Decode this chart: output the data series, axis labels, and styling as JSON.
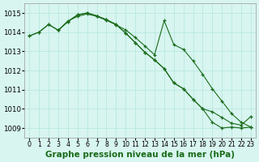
{
  "xlabel": "Graphe pression niveau de la mer (hPa)",
  "line_color": "#1a6b1a",
  "bg_color": "#d8f5f0",
  "grid_color": "#b8e8df",
  "ylim_min": 1008.5,
  "ylim_max": 1015.5,
  "yticks": [
    1009,
    1010,
    1011,
    1012,
    1013,
    1014,
    1015
  ],
  "label_fontsize": 7.5,
  "tick_fontsize": 6.2,
  "series1_x": [
    0,
    1,
    2,
    3,
    4,
    5,
    6,
    7,
    8,
    9,
    10,
    11,
    12,
    13,
    14,
    15,
    16,
    17,
    18,
    19,
    20,
    21,
    22,
    23
  ],
  "series1_y": [
    1013.8,
    1014.0,
    1014.4,
    1014.1,
    1014.55,
    1014.9,
    1015.0,
    1014.85,
    1014.65,
    1014.4,
    1013.95,
    1013.45,
    1012.95,
    1012.55,
    1012.1,
    1011.35,
    1011.05,
    1010.5,
    1010.0,
    1009.3,
    1009.0,
    1009.05,
    1009.0,
    1009.05
  ],
  "series2_x": [
    3,
    4,
    5,
    6,
    7,
    8,
    9,
    10,
    11,
    12,
    13,
    14,
    15,
    16,
    17,
    18,
    19,
    20,
    21,
    22,
    23
  ],
  "series2_y": [
    1014.1,
    1014.58,
    1014.82,
    1014.95,
    1014.82,
    1014.62,
    1014.38,
    1014.12,
    1013.72,
    1013.28,
    1012.82,
    1014.6,
    1013.35,
    1013.1,
    1012.5,
    1011.8,
    1011.05,
    1010.4,
    1009.75,
    1009.3,
    1009.05
  ],
  "series3_x": [
    0,
    1,
    2,
    3,
    4,
    5,
    6,
    7,
    8,
    9,
    10,
    11,
    12,
    13,
    14,
    15,
    16,
    17,
    18,
    19,
    20,
    21,
    22,
    23
  ],
  "series3_y": [
    1013.8,
    1014.0,
    1014.4,
    1014.1,
    1014.55,
    1014.9,
    1015.0,
    1014.85,
    1014.65,
    1014.4,
    1013.95,
    1013.45,
    1012.95,
    1012.55,
    1012.1,
    1011.35,
    1011.05,
    1010.5,
    1010.0,
    1009.85,
    1009.55,
    1009.25,
    1009.15,
    1009.6
  ]
}
